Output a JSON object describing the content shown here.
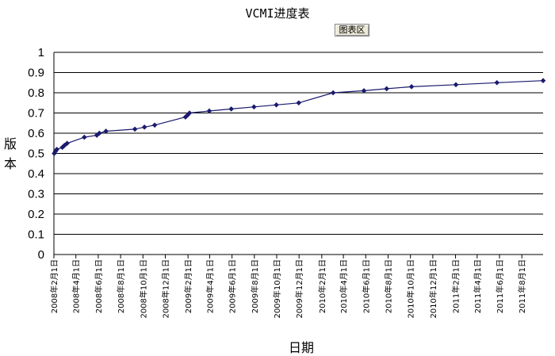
{
  "chart_button": {
    "label": "图表区"
  },
  "chart_data": {
    "type": "line",
    "title": "VCMI进度表",
    "xlabel": "日期",
    "ylabel": "版本",
    "ylim": [
      0,
      1
    ],
    "y_ticks": [
      "0",
      "0.1",
      "0.2",
      "0.3",
      "0.4",
      "0.5",
      "0.6",
      "0.7",
      "0.8",
      "0.9",
      "1"
    ],
    "x_range": [
      "2008-02-01",
      "2011-09-28"
    ],
    "x_ticks": [
      "2008-02-01",
      "2008-04-01",
      "2008-06-01",
      "2008-08-01",
      "2008-10-01",
      "2008-12-01",
      "2009-02-01",
      "2009-04-01",
      "2009-06-01",
      "2009-08-01",
      "2009-10-01",
      "2009-12-01",
      "2010-02-01",
      "2010-04-01",
      "2010-06-01",
      "2010-08-01",
      "2010-10-01",
      "2010-12-01",
      "2011-02-01",
      "2011-04-01",
      "2011-06-01",
      "2011-08-01"
    ],
    "x_tick_labels": [
      "2008年2月1日",
      "2008年4月1日",
      "2008年6月1日",
      "2008年8月1日",
      "2008年10月1日",
      "2008年12月1日",
      "2009年2月1日",
      "2009年4月1日",
      "2009年6月1日",
      "2009年8月1日",
      "2009年10月1日",
      "2009年12月1日",
      "2010年2月1日",
      "2010年4月1日",
      "2010年6月1日",
      "2010年8月1日",
      "2010年10月1日",
      "2010年12月1日",
      "2011年2月1日",
      "2011年4月1日",
      "2011年6月1日",
      "2011年8月1日"
    ],
    "grid": true,
    "color": "#1a1a6e",
    "series": [
      {
        "points": [
          {
            "x": "2008-02-02",
            "y": 0.5
          },
          {
            "x": "2008-02-05",
            "y": 0.51
          },
          {
            "x": "2008-02-09",
            "y": 0.52
          },
          {
            "x": "2008-02-24",
            "y": 0.53
          },
          {
            "x": "2008-03-01",
            "y": 0.54
          },
          {
            "x": "2008-03-08",
            "y": 0.55
          },
          {
            "x": "2008-04-24",
            "y": 0.58
          },
          {
            "x": "2008-05-28",
            "y": 0.59
          },
          {
            "x": "2008-06-04",
            "y": 0.6
          },
          {
            "x": "2008-06-22",
            "y": 0.61
          },
          {
            "x": "2008-09-09",
            "y": 0.62
          },
          {
            "x": "2008-10-05",
            "y": 0.63
          },
          {
            "x": "2008-11-02",
            "y": 0.64
          },
          {
            "x": "2009-01-25",
            "y": 0.68
          },
          {
            "x": "2009-01-31",
            "y": 0.69
          },
          {
            "x": "2009-02-05",
            "y": 0.7
          },
          {
            "x": "2009-03-31",
            "y": 0.71
          },
          {
            "x": "2009-05-30",
            "y": 0.72
          },
          {
            "x": "2009-07-31",
            "y": 0.73
          },
          {
            "x": "2009-09-30",
            "y": 0.74
          },
          {
            "x": "2009-11-30",
            "y": 0.75
          },
          {
            "x": "2010-03-04",
            "y": 0.8
          },
          {
            "x": "2010-05-27",
            "y": 0.81
          },
          {
            "x": "2010-07-28",
            "y": 0.82
          },
          {
            "x": "2010-10-04",
            "y": 0.83
          },
          {
            "x": "2011-02-02",
            "y": 0.84
          },
          {
            "x": "2011-05-25",
            "y": 0.85
          },
          {
            "x": "2011-09-28",
            "y": 0.86
          }
        ]
      }
    ]
  }
}
